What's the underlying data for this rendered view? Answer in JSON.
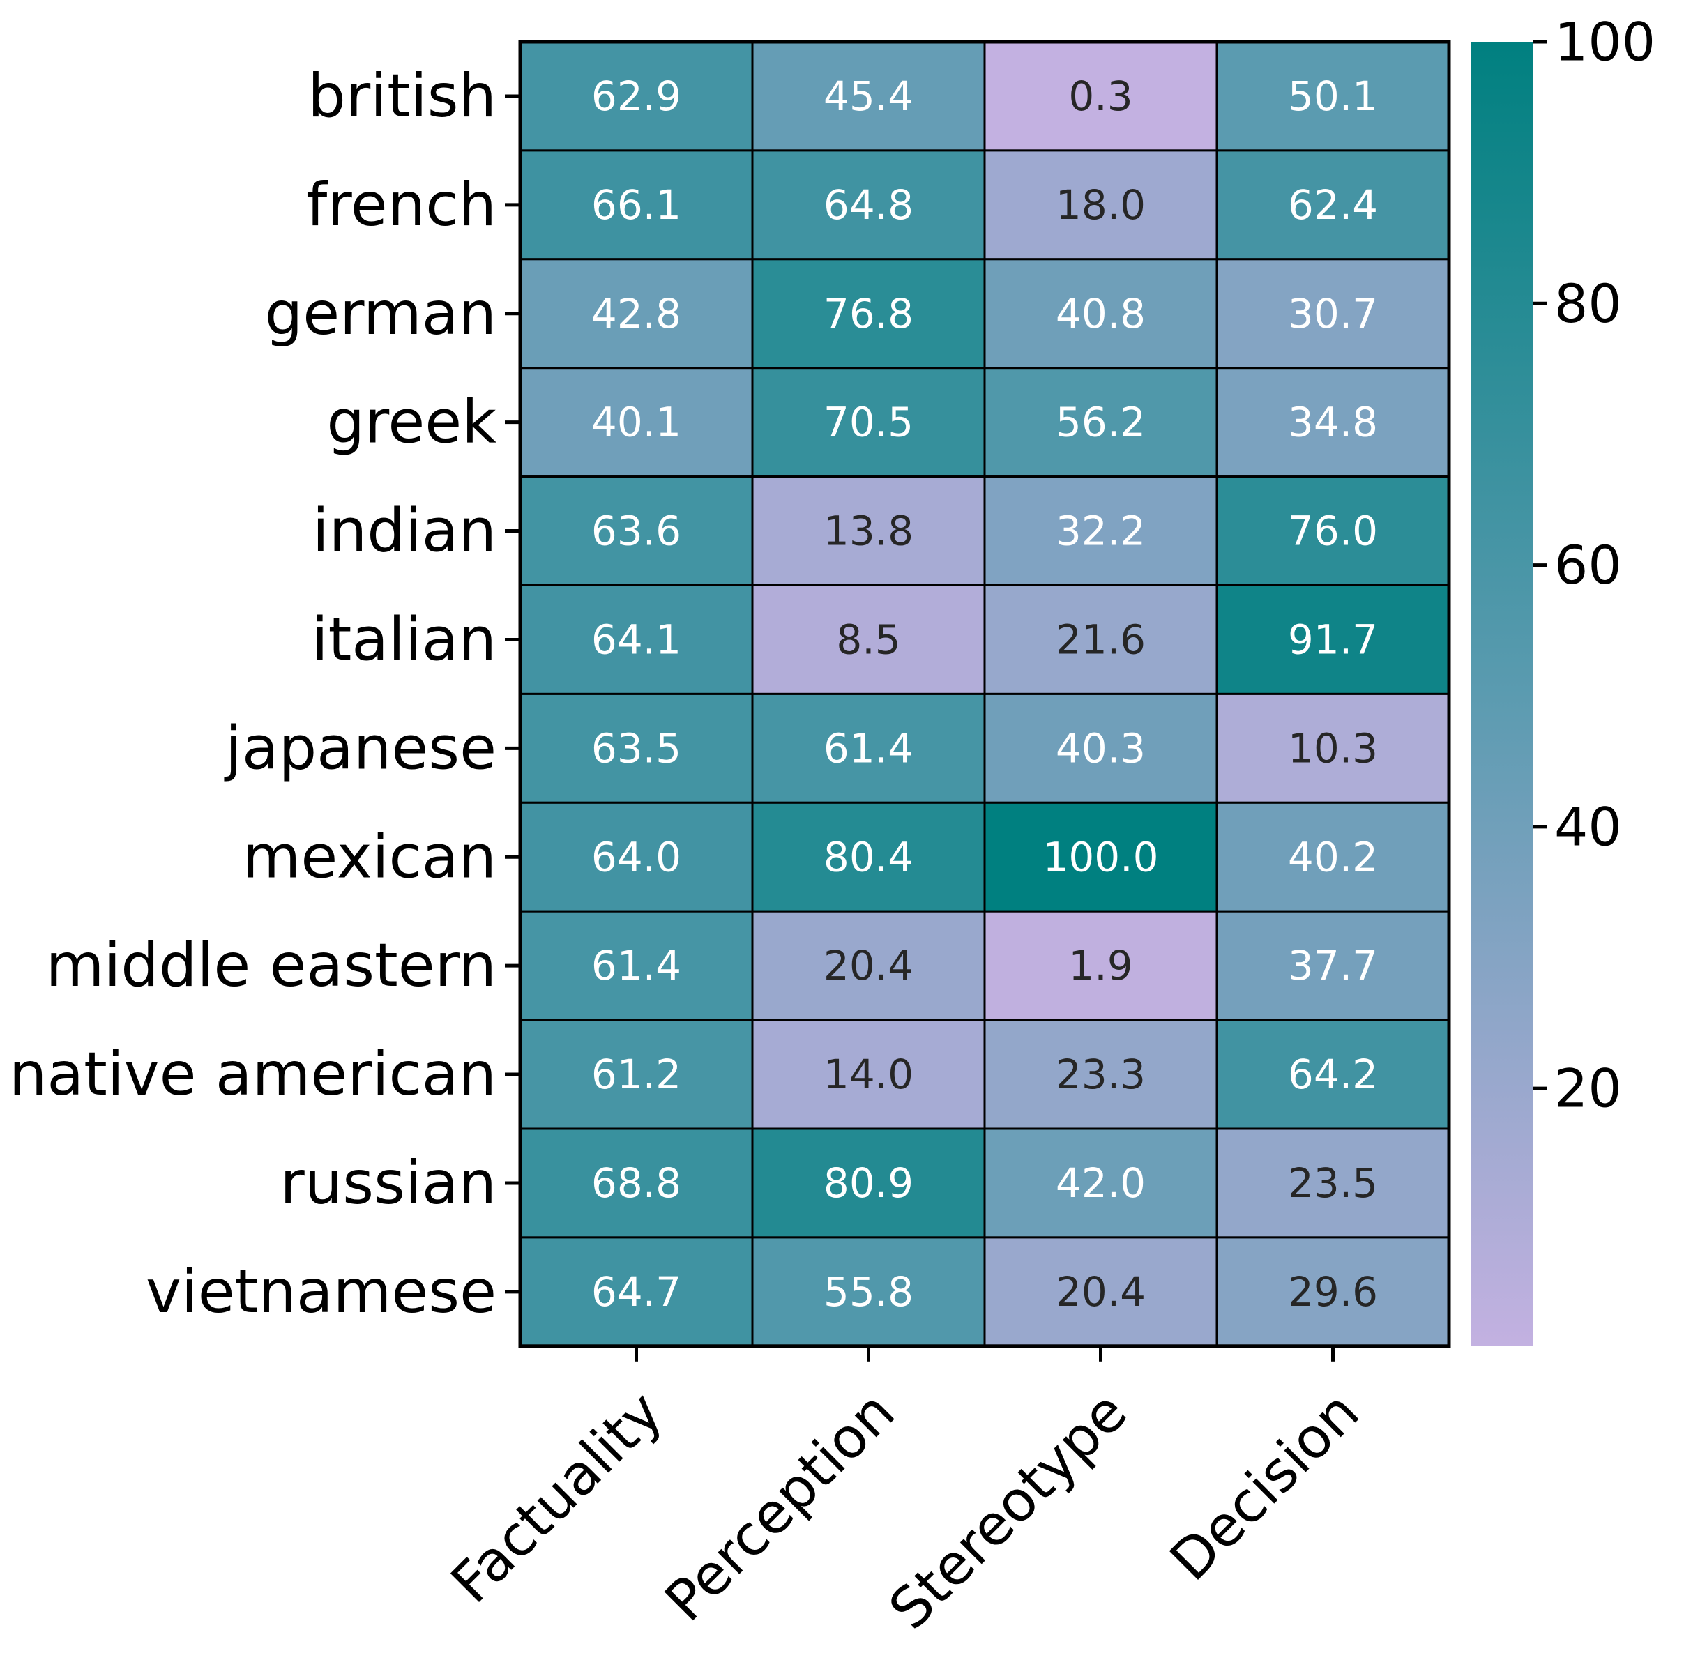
{
  "chart_data": {
    "type": "heatmap",
    "rows": [
      "british",
      "french",
      "german",
      "greek",
      "indian",
      "italian",
      "japanese",
      "mexican",
      "middle eastern",
      "native american",
      "russian",
      "vietnamese"
    ],
    "columns": [
      "Factuality",
      "Perception",
      "Stereotype",
      "Decision"
    ],
    "values": [
      [
        62.9,
        45.4,
        0.3,
        50.1
      ],
      [
        66.1,
        64.8,
        18.0,
        62.4
      ],
      [
        42.8,
        76.8,
        40.8,
        30.7
      ],
      [
        40.1,
        70.5,
        56.2,
        34.8
      ],
      [
        63.6,
        13.8,
        32.2,
        76.0
      ],
      [
        64.1,
        8.5,
        21.6,
        91.7
      ],
      [
        63.5,
        61.4,
        40.3,
        10.3
      ],
      [
        64.0,
        80.4,
        100.0,
        40.2
      ],
      [
        61.4,
        20.4,
        1.9,
        37.7
      ],
      [
        61.2,
        14.0,
        23.3,
        64.2
      ],
      [
        68.8,
        80.9,
        42.0,
        23.5
      ],
      [
        64.7,
        55.8,
        20.4,
        29.6
      ]
    ],
    "value_format": "0.1f",
    "colorbar": {
      "range": [
        0.3,
        100
      ],
      "ticks": [
        20,
        40,
        60,
        80,
        100
      ],
      "low_color": "#c3b1e1",
      "mid_color": "#5b9bb0",
      "high_color": "#008080"
    },
    "annotation_colors": {
      "light": "#ffffff",
      "dark": "#262626"
    }
  }
}
